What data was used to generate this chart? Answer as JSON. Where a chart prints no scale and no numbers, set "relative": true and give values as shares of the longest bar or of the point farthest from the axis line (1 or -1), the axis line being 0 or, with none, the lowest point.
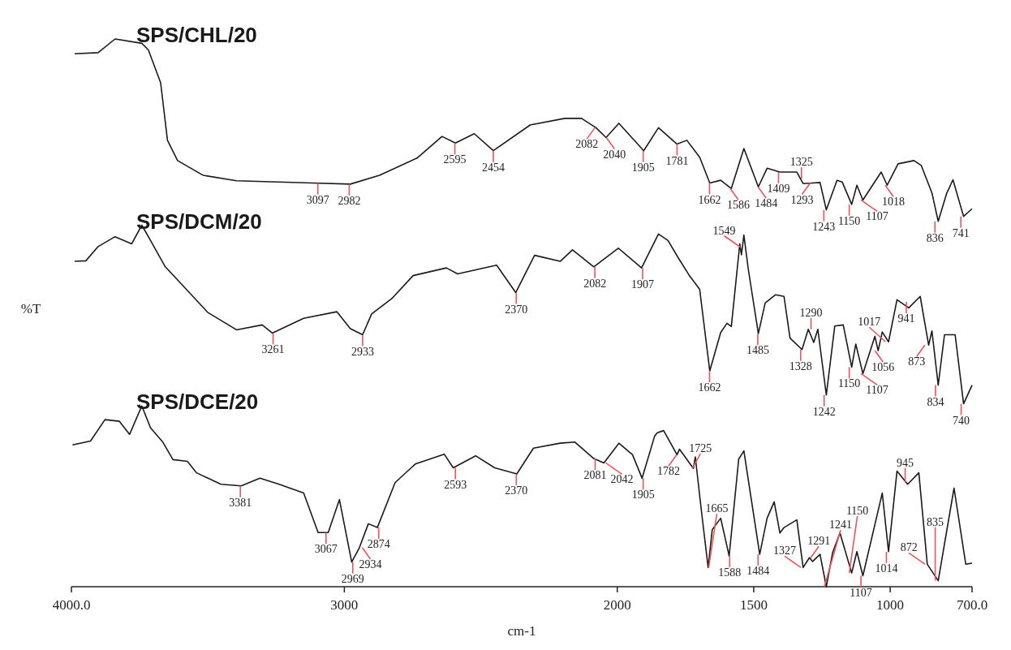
{
  "chart_data": {
    "type": "line",
    "relative": true,
    "xlabel": "cm-1",
    "ylabel": "%T",
    "xlim": [
      4000,
      700
    ],
    "xticks": [
      {
        "value": 4000,
        "label": "4000.0"
      },
      3000,
      2000,
      1500,
      1000,
      {
        "value": 700,
        "label": "700.0"
      }
    ],
    "series": [
      {
        "name": "SPS/CHL/20",
        "color": "#1a1a1a",
        "x": [
          3988,
          3902,
          3840,
          3742,
          3718,
          3673,
          3648,
          3611,
          3517,
          3395,
          3117,
          2978,
          2871,
          2732,
          2642,
          2593,
          2524,
          2454,
          2319,
          2192,
          2131,
          2078,
          2041,
          1994,
          1903,
          1849,
          1781,
          1745,
          1698,
          1661,
          1621,
          1582,
          1536,
          1483,
          1451,
          1404,
          1342,
          1319,
          1284,
          1257,
          1234,
          1195,
          1176,
          1141,
          1122,
          1100,
          1033,
          1011,
          971,
          913,
          886,
          847,
          824,
          793,
          770,
          731,
          700
        ],
        "values": [
          0.973,
          0.975,
          1,
          0.992,
          0.98,
          0.92,
          0.815,
          0.778,
          0.751,
          0.741,
          0.737,
          0.735,
          0.751,
          0.783,
          0.822,
          0.81,
          0.827,
          0.796,
          0.843,
          0.855,
          0.855,
          0.838,
          0.82,
          0.846,
          0.796,
          0.838,
          0.808,
          0.815,
          0.784,
          0.737,
          0.742,
          0.727,
          0.8,
          0.73,
          0.764,
          0.757,
          0.757,
          0.736,
          0.737,
          0.738,
          0.688,
          0.742,
          0.739,
          0.698,
          0.733,
          0.706,
          0.757,
          0.733,
          0.772,
          0.778,
          0.769,
          0.719,
          0.667,
          0.718,
          0.743,
          0.676,
          0.69
        ]
      },
      {
        "name": "SPS/DCM/20",
        "color": "#1a1a1a",
        "x": [
          3988,
          3947,
          3902,
          3840,
          3779,
          3742,
          3710,
          3656,
          3579,
          3501,
          3395,
          3301,
          3264,
          3149,
          3027,
          2978,
          2933,
          2900,
          2826,
          2748,
          2626,
          2585,
          2442,
          2372,
          2303,
          2209,
          2164,
          2086,
          1996,
          1911,
          1849,
          1814,
          1776,
          1737,
          1698,
          1661,
          1621,
          1598,
          1582,
          1551,
          1545,
          1536,
          1520,
          1483,
          1458,
          1420,
          1389,
          1367,
          1323,
          1300,
          1280,
          1265,
          1234,
          1203,
          1172,
          1141,
          1126,
          1100,
          1056,
          1044,
          1029,
          1006,
          975,
          932,
          890,
          859,
          847,
          824,
          801,
          762,
          731,
          700
        ],
        "values": [
          0.594,
          0.595,
          0.621,
          0.639,
          0.626,
          0.66,
          0.632,
          0.584,
          0.543,
          0.501,
          0.469,
          0.478,
          0.463,
          0.49,
          0.502,
          0.471,
          0.46,
          0.498,
          0.526,
          0.568,
          0.582,
          0.571,
          0.587,
          0.537,
          0.605,
          0.594,
          0.615,
          0.584,
          0.618,
          0.582,
          0.644,
          0.632,
          0.6,
          0.569,
          0.543,
          0.394,
          0.464,
          0.481,
          0.475,
          0.626,
          0.606,
          0.642,
          0.58,
          0.462,
          0.518,
          0.533,
          0.53,
          0.454,
          0.433,
          0.47,
          0.446,
          0.47,
          0.35,
          0.476,
          0.478,
          0.401,
          0.443,
          0.389,
          0.457,
          0.431,
          0.465,
          0.447,
          0.524,
          0.509,
          0.53,
          0.441,
          0.467,
          0.368,
          0.46,
          0.46,
          0.334,
          0.368
        ]
      },
      {
        "name": "SPS/DCE/20",
        "color": "#1a1a1a",
        "x": [
          3996,
          3930,
          3877,
          3824,
          3787,
          3742,
          3710,
          3665,
          3628,
          3575,
          3542,
          3452,
          3378,
          3309,
          3239,
          3149,
          3096,
          3059,
          3018,
          2973,
          2945,
          2912,
          2879,
          2814,
          2740,
          2634,
          2601,
          2519,
          2449,
          2368,
          2307,
          2209,
          2155,
          2086,
          2049,
          1994,
          1944,
          1909,
          1863,
          1853,
          1830,
          1781,
          1772,
          1721,
          1714,
          1692,
          1667,
          1652,
          1621,
          1590,
          1555,
          1536,
          1514,
          1478,
          1451,
          1425,
          1404,
          1389,
          1342,
          1319,
          1296,
          1284,
          1257,
          1234,
          1211,
          1184,
          1141,
          1122,
          1100,
          1029,
          1006,
          975,
          936,
          895,
          864,
          824,
          766,
          723,
          700
        ],
        "values": [
          0.259,
          0.266,
          0.305,
          0.302,
          0.278,
          0.33,
          0.29,
          0.264,
          0.232,
          0.229,
          0.208,
          0.187,
          0.184,
          0.198,
          0.187,
          0.171,
          0.099,
          0.099,
          0.159,
          0.045,
          0.071,
          0.115,
          0.108,
          0.19,
          0.224,
          0.242,
          0.217,
          0.239,
          0.217,
          0.206,
          0.253,
          0.262,
          0.264,
          0.234,
          0.226,
          0.262,
          0.241,
          0.198,
          0.275,
          0.281,
          0.285,
          0.241,
          0.251,
          0.216,
          0.237,
          0.14,
          0.035,
          0.104,
          0.125,
          0.056,
          0.233,
          0.248,
          0.176,
          0.059,
          0.125,
          0.155,
          0.098,
          0.108,
          0.122,
          0.035,
          0.053,
          0.046,
          0.059,
          0,
          0.062,
          0.098,
          0.025,
          0.064,
          0.02,
          0.171,
          0.064,
          0.211,
          0.187,
          0.208,
          0.041,
          0.011,
          0.18,
          0.041,
          0.043
        ]
      }
    ],
    "annotations": [
      {
        "text": "3097",
        "x": 3097,
        "y": 0.737
      },
      {
        "text": "2982",
        "x": 2982,
        "y": 0.735
      },
      {
        "text": "2595",
        "x": 2595,
        "y": 0.81
      },
      {
        "text": "2454",
        "x": 2454,
        "y": 0.796
      },
      {
        "text": "2082",
        "x": 2082,
        "y": 0.838
      },
      {
        "text": "2040",
        "x": 2040,
        "y": 0.82
      },
      {
        "text": "1905",
        "x": 1905,
        "y": 0.796
      },
      {
        "text": "1781",
        "x": 1781,
        "y": 0.808
      },
      {
        "text": "1662",
        "x": 1662,
        "y": 0.737
      },
      {
        "text": "1586",
        "x": 1586,
        "y": 0.727
      },
      {
        "text": "1484",
        "x": 1484,
        "y": 0.73
      },
      {
        "text": "1409",
        "x": 1409,
        "y": 0.757
      },
      {
        "text": "1325",
        "x": 1325,
        "y": 0.745
      },
      {
        "text": "1293",
        "x": 1293,
        "y": 0.737
      },
      {
        "text": "1243",
        "x": 1243,
        "y": 0.688
      },
      {
        "text": "1150",
        "x": 1150,
        "y": 0.698
      },
      {
        "text": "1107",
        "x": 1107,
        "y": 0.706
      },
      {
        "text": "1018",
        "x": 1018,
        "y": 0.733
      },
      {
        "text": "836",
        "x": 836,
        "y": 0.667
      },
      {
        "text": "741",
        "x": 741,
        "y": 0.676
      },
      {
        "text": "3261",
        "x": 3261,
        "y": 0.463
      },
      {
        "text": "2933",
        "x": 2933,
        "y": 0.46
      },
      {
        "text": "2370",
        "x": 2370,
        "y": 0.537
      },
      {
        "text": "2082",
        "x": 2082,
        "y": 0.584
      },
      {
        "text": "1907",
        "x": 1907,
        "y": 0.582
      },
      {
        "text": "1662",
        "x": 1662,
        "y": 0.394
      },
      {
        "text": "1549",
        "x": 1549,
        "y": 0.62
      },
      {
        "text": "1485",
        "x": 1485,
        "y": 0.462
      },
      {
        "text": "1328",
        "x": 1328,
        "y": 0.433
      },
      {
        "text": "1290",
        "x": 1290,
        "y": 0.47
      },
      {
        "text": "1242",
        "x": 1242,
        "y": 0.35
      },
      {
        "text": "1150",
        "x": 1150,
        "y": 0.401
      },
      {
        "text": "1107",
        "x": 1107,
        "y": 0.389
      },
      {
        "text": "1056",
        "x": 1056,
        "y": 0.431
      },
      {
        "text": "1017",
        "x": 1017,
        "y": 0.447
      },
      {
        "text": "941",
        "x": 941,
        "y": 0.52
      },
      {
        "text": "873",
        "x": 873,
        "y": 0.441
      },
      {
        "text": "834",
        "x": 834,
        "y": 0.368
      },
      {
        "text": "740",
        "x": 740,
        "y": 0.334
      },
      {
        "text": "3381",
        "x": 3381,
        "y": 0.184
      },
      {
        "text": "3067",
        "x": 3067,
        "y": 0.099
      },
      {
        "text": "2969",
        "x": 2969,
        "y": 0.045
      },
      {
        "text": "2934",
        "x": 2934,
        "y": 0.071
      },
      {
        "text": "2874",
        "x": 2874,
        "y": 0.108
      },
      {
        "text": "2593",
        "x": 2593,
        "y": 0.217
      },
      {
        "text": "2370",
        "x": 2370,
        "y": 0.206
      },
      {
        "text": "2081",
        "x": 2081,
        "y": 0.234
      },
      {
        "text": "2042",
        "x": 2042,
        "y": 0.226
      },
      {
        "text": "1905",
        "x": 1905,
        "y": 0.198
      },
      {
        "text": "1782",
        "x": 1782,
        "y": 0.241
      },
      {
        "text": "1725",
        "x": 1725,
        "y": 0.216
      },
      {
        "text": "1665",
        "x": 1665,
        "y": 0.035
      },
      {
        "text": "1588",
        "x": 1588,
        "y": 0.056
      },
      {
        "text": "1484",
        "x": 1484,
        "y": 0.059
      },
      {
        "text": "1327",
        "x": 1327,
        "y": 0.035
      },
      {
        "text": "1291",
        "x": 1291,
        "y": 0.053
      },
      {
        "text": "1241",
        "x": 1241,
        "y": 0
      },
      {
        "text": "1150",
        "x": 1150,
        "y": 0.025
      },
      {
        "text": "1107",
        "x": 1107,
        "y": 0.02
      },
      {
        "text": "1014",
        "x": 1014,
        "y": 0.064
      },
      {
        "text": "945",
        "x": 945,
        "y": 0.19
      },
      {
        "text": "872",
        "x": 872,
        "y": 0.041
      },
      {
        "text": "835",
        "x": 835,
        "y": 0.011
      }
    ]
  }
}
